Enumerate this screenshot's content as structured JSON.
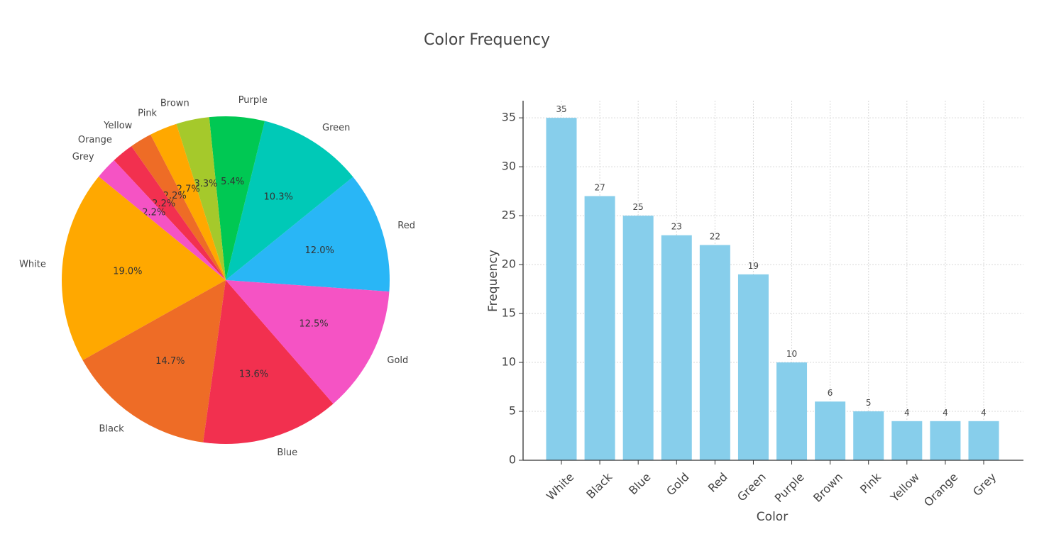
{
  "figure": {
    "title": "Color Frequency"
  },
  "chart_data": [
    {
      "type": "pie",
      "title": "",
      "categories": [
        "Red",
        "Green",
        "Purple",
        "Brown",
        "Pink",
        "Yellow",
        "Orange",
        "Grey",
        "White",
        "Black",
        "Blue",
        "Gold"
      ],
      "values": [
        22,
        19,
        10,
        6,
        5,
        4,
        4,
        4,
        35,
        27,
        25,
        23
      ],
      "percent_labels": [
        "12.0%",
        "10.3%",
        "5.4%",
        "3.3%",
        "2.7%",
        "2.2%",
        "2.2%",
        "2.2%",
        "19.0%",
        "14.7%",
        "13.6%",
        "12.5%"
      ],
      "colors": [
        "#29B6F6",
        "#00C9B7",
        "#00C853",
        "#A5C92B",
        "#FFA800",
        "#EE6C26",
        "#F2304F",
        "#F553C4",
        "#FFA800",
        "#EE6C26",
        "#F2304F",
        "#F553C4"
      ]
    },
    {
      "type": "bar",
      "title": "",
      "categories": [
        "White",
        "Black",
        "Blue",
        "Gold",
        "Red",
        "Green",
        "Purple",
        "Brown",
        "Pink",
        "Yellow",
        "Orange",
        "Grey"
      ],
      "values": [
        35,
        27,
        25,
        23,
        22,
        19,
        10,
        6,
        5,
        4,
        4,
        4
      ],
      "xlabel": "Color",
      "ylabel": "Frequency",
      "ylim": [
        0,
        36.75
      ],
      "yticks": [
        0,
        5,
        10,
        15,
        20,
        25,
        30,
        35
      ],
      "grid": true,
      "bar_color": "#87CEEB"
    }
  ]
}
